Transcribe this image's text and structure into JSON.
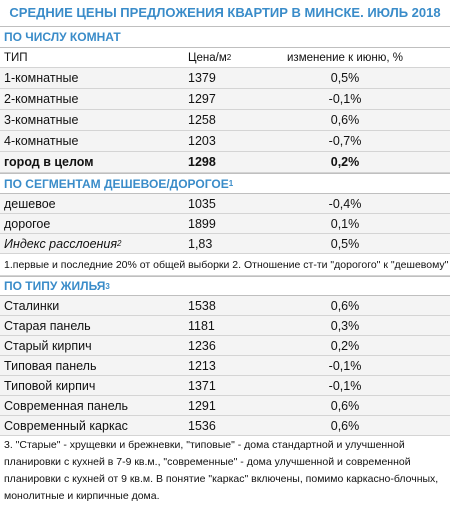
{
  "title": "СРЕДНИЕ ЦЕНЫ ПРЕДЛОЖЕНИЯ КВАРТИР В МИНСКЕ. ИЮЛЬ 2018",
  "rooms": {
    "heading": "ПО ЧИСЛУ КОМНАТ",
    "columns": {
      "type": "ТИП",
      "price": "Цена/м",
      "price_sup": "2",
      "change": "изменение к июню, %"
    },
    "rows": [
      [
        "1-комнатные",
        "1379",
        "0,5%"
      ],
      [
        "2-комнатные",
        "1297",
        "-0,1%"
      ],
      [
        "3-комнатные",
        "1258",
        "0,6%"
      ],
      [
        "4-комнатные",
        "1203",
        "-0,7%"
      ]
    ],
    "total": [
      "город в целом",
      "1298",
      "0,2%"
    ]
  },
  "segments": {
    "heading": "ПО СЕГМЕНТАМ ДЕШЕВОЕ/ДОРОГОЕ",
    "heading_sup": "1",
    "rows": [
      [
        "дешевое",
        "1035",
        "-0,4%"
      ],
      [
        "дорогое",
        "1899",
        "0,1%"
      ]
    ],
    "index": {
      "label": "Индекс расслоения",
      "sup": "2",
      "price": "1,83",
      "change": "0,5%"
    },
    "note": "1.первые и последние 20% от общей выборки 2. Отношение ст-ти \"дорогого\" к \"дешевому\""
  },
  "housing": {
    "heading": "ПО ТИПУ ЖИЛЬЯ",
    "heading_sup": "3",
    "rows": [
      [
        "Сталинки",
        "1538",
        "0,6%"
      ],
      [
        "Старая панель",
        "1181",
        "0,3%"
      ],
      [
        "Старый кирпич",
        "1236",
        "0,2%"
      ],
      [
        "Типовая панель",
        "1213",
        "-0,1%"
      ],
      [
        "Типовой кирпич",
        "1371",
        "-0,1%"
      ],
      [
        "Современная панель",
        "1291",
        "0,6%"
      ],
      [
        "Современный каркас",
        "1536",
        "0,6%"
      ]
    ],
    "footnote": "3. \"Старые\" - хрущевки и брежневки, \"типовые\" - дома стандартной и улучшенной планировки с кухней в 7-9 кв.м., \"современные\" - дома улучшенной и современной планировки с кухней от 9 кв.м. В понятие \"каркас\" включены, помимо каркасно-блочных, монолитные и кирпичные дома."
  }
}
